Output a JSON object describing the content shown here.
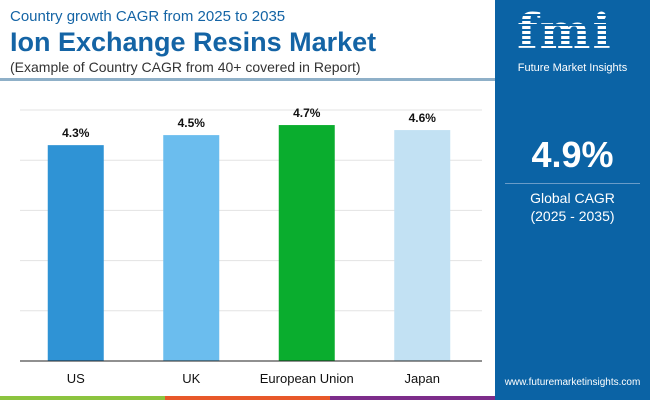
{
  "header": {
    "subtitle": "Country growth CAGR from 2025 to 2035",
    "title": "Ion Exchange Resins Market",
    "note": "(Example of Country CAGR from 40+ covered in Report)"
  },
  "panel": {
    "logo": "fmi",
    "logo_text": "Future Market Insights",
    "value": "4.9%",
    "label": "Global CAGR",
    "period": "(2025 - 2035)",
    "url": "www.futuremarketinsights.com",
    "color": "#0b63a5"
  },
  "chart_data": {
    "type": "bar",
    "categories": [
      "US",
      "UK",
      "European Union",
      "Japan"
    ],
    "values": [
      4.3,
      4.5,
      4.7,
      4.6
    ],
    "labels": [
      "4.3%",
      "4.5%",
      "4.7%",
      "4.6%"
    ],
    "colors": [
      "#2f93d5",
      "#6bbdee",
      "#0aad2e",
      "#c2e1f3"
    ],
    "ylim": [
      0,
      5
    ],
    "grid": true
  }
}
